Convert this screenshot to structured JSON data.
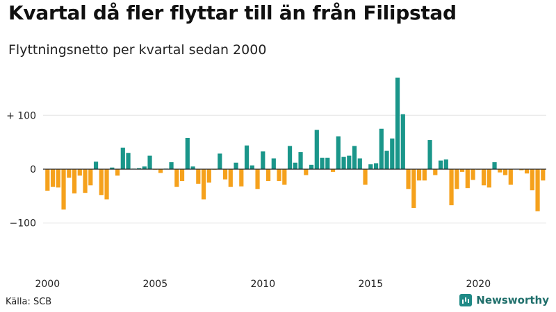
{
  "title": "Kvartal då fler flyttar till än från Filipstad",
  "subtitle": "Flyttningsnetto per kvartal sedan 2000",
  "source": "Källa: SCB",
  "brand": "Newsworthy",
  "brand_icon": "newsworthy-logo-icon",
  "colors": {
    "positive": "#1a968a",
    "negative": "#f5a11c",
    "grid": "#e4e4e4",
    "zero": "#222222"
  },
  "chart_data": {
    "type": "bar",
    "title": "Kvartal då fler flyttar till än från Filipstad",
    "subtitle": "Flyttningsnetto per kvartal sedan 2000",
    "ylim": [
      -150,
      185
    ],
    "yticks": [
      100,
      0,
      -100
    ],
    "ytick_labels": [
      "+ 100",
      "0",
      "−100"
    ],
    "xticks": [
      2000,
      2005,
      2010,
      2015,
      2020
    ],
    "xtick_labels": [
      "2000",
      "2005",
      "2010",
      "2015",
      "2020"
    ],
    "start_year": 2000,
    "grid": true,
    "series": [
      {
        "values": [
          -40,
          -33,
          -34,
          -75,
          -16,
          -45,
          -12,
          -44,
          -30,
          14,
          -48,
          -56,
          3,
          -12,
          40,
          30,
          1,
          2,
          5,
          25,
          -1,
          -7,
          1,
          13,
          -33,
          -22,
          58,
          5,
          -27,
          -56,
          -25,
          -1,
          29,
          -19,
          -33,
          12,
          -32,
          44,
          7,
          -37,
          33,
          -22,
          20,
          -22,
          -29,
          43,
          12,
          32,
          -11,
          8,
          73,
          21,
          21,
          -5,
          61,
          23,
          25,
          43,
          20,
          -29,
          9,
          11,
          75,
          34,
          57,
          170,
          102,
          -37,
          -72,
          -21,
          -21,
          54,
          -11,
          16,
          18,
          -67,
          -37,
          -5,
          -35,
          -20,
          -1,
          -30,
          -34,
          13,
          -6,
          -11,
          -29,
          0,
          -2,
          -8,
          -39,
          -78,
          -21
        ]
      }
    ]
  }
}
